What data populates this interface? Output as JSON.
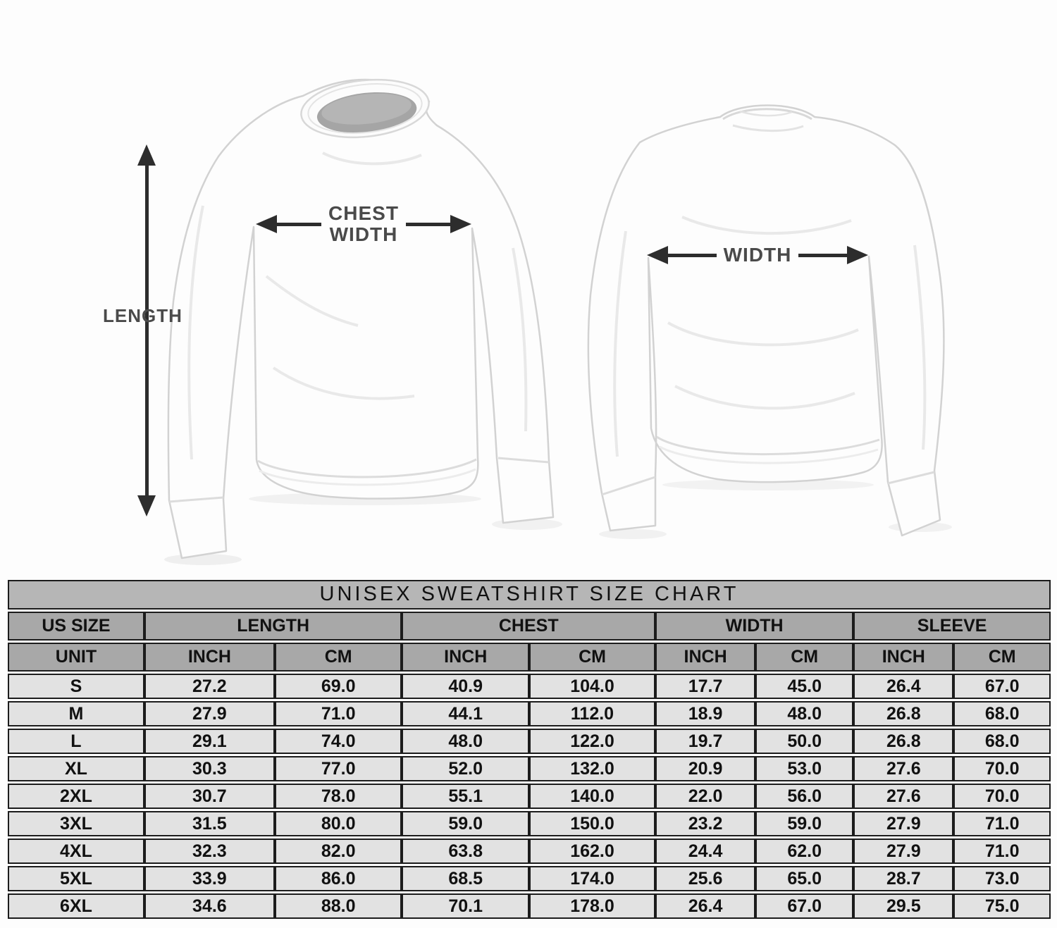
{
  "diagram": {
    "length_label": "LENGTH",
    "chest_width_line1": "CHEST",
    "chest_width_line2": "WIDTH",
    "back_width_label": "WIDTH",
    "label_color": "#4a4a4a",
    "arrow_color": "#2d2d2d"
  },
  "chart_data": {
    "type": "table",
    "title": "UNISEX SWEATSHIRT SIZE CHART",
    "header": {
      "us_size": "US SIZE",
      "groups": [
        {
          "label": "LENGTH"
        },
        {
          "label": "CHEST"
        },
        {
          "label": "WIDTH"
        },
        {
          "label": "SLEEVE"
        }
      ],
      "unit_label": "UNIT",
      "unit_cols": [
        "INCH",
        "CM",
        "INCH",
        "CM",
        "INCH",
        "CM",
        "INCH",
        "CM"
      ]
    },
    "rows": [
      {
        "size": "S",
        "values": [
          "27.2",
          "69.0",
          "40.9",
          "104.0",
          "17.7",
          "45.0",
          "26.4",
          "67.0"
        ]
      },
      {
        "size": "M",
        "values": [
          "27.9",
          "71.0",
          "44.1",
          "112.0",
          "18.9",
          "48.0",
          "26.8",
          "68.0"
        ]
      },
      {
        "size": "L",
        "values": [
          "29.1",
          "74.0",
          "48.0",
          "122.0",
          "19.7",
          "50.0",
          "26.8",
          "68.0"
        ]
      },
      {
        "size": "XL",
        "values": [
          "30.3",
          "77.0",
          "52.0",
          "132.0",
          "20.9",
          "53.0",
          "27.6",
          "70.0"
        ]
      },
      {
        "size": "2XL",
        "values": [
          "30.7",
          "78.0",
          "55.1",
          "140.0",
          "22.0",
          "56.0",
          "27.6",
          "70.0"
        ]
      },
      {
        "size": "3XL",
        "values": [
          "31.5",
          "80.0",
          "59.0",
          "150.0",
          "23.2",
          "59.0",
          "27.9",
          "71.0"
        ]
      },
      {
        "size": "4XL",
        "values": [
          "32.3",
          "82.0",
          "63.8",
          "162.0",
          "24.4",
          "62.0",
          "27.9",
          "71.0"
        ]
      },
      {
        "size": "5XL",
        "values": [
          "33.9",
          "86.0",
          "68.5",
          "174.0",
          "25.6",
          "65.0",
          "28.7",
          "73.0"
        ]
      },
      {
        "size": "6XL",
        "values": [
          "34.6",
          "88.0",
          "70.1",
          "178.0",
          "26.4",
          "67.0",
          "29.5",
          "75.0"
        ]
      }
    ],
    "colors": {
      "title_bg": "#b6b6b6",
      "header_bg": "#a8a8a8",
      "row_bg": "#e2e2e2",
      "border": "#1c1c1c",
      "text": "#111111"
    }
  }
}
